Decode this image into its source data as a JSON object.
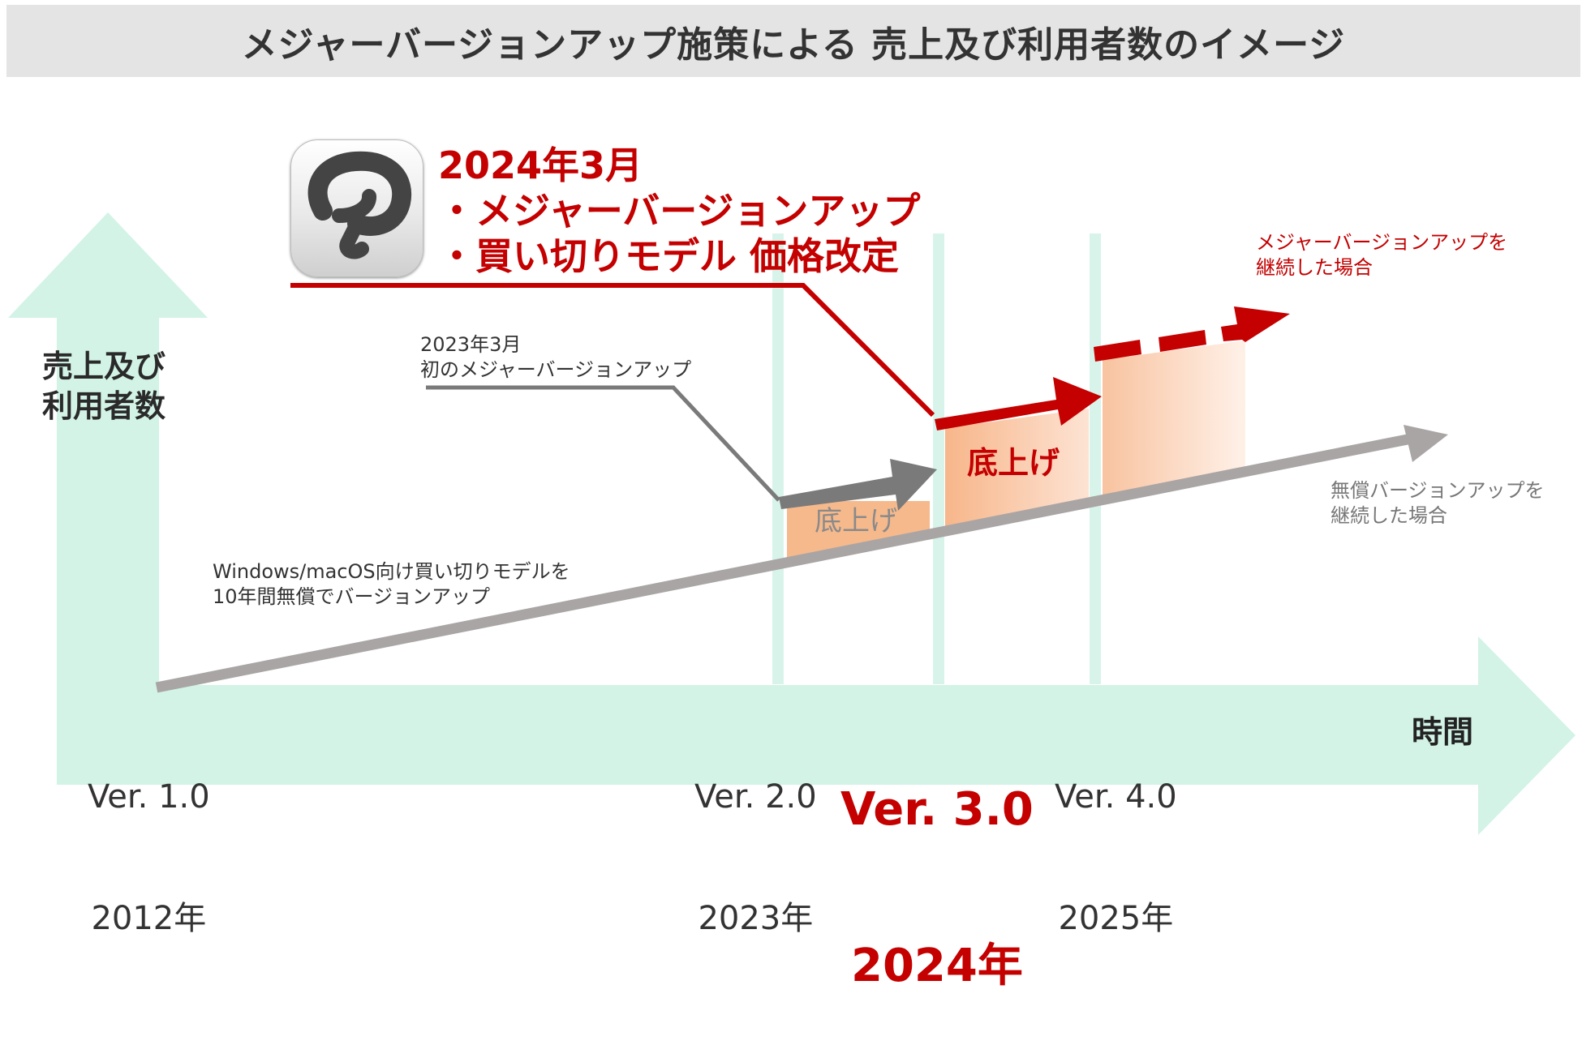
{
  "title": "メジャーバージョンアップ施策による 売上及び利用者数のイメージ",
  "y_axis_label": "売上及び\n利用者数",
  "x_axis_label": "時間",
  "headline": "2024年3月\n・メジャーバージョンアップ\n・買い切りモデル 価格改定",
  "note_2023": "2023年3月\n初のメジャーバージョンアップ",
  "note_windows": "Windows/macOS向け買い切りモデルを\n10年間無償でバージョンアップ",
  "note_major_continue": "メジャーバージョンアップを\n継続した場合",
  "note_free_continue": "無償バージョンアップを\n継続した場合",
  "step_label_2023": "底上げ",
  "step_label_2024": "底上げ",
  "versions": [
    {
      "ver": "Ver. 1.0",
      "year": "2012年",
      "highlight": false
    },
    {
      "ver": "Ver. 2.0",
      "year": "2023年",
      "highlight": false
    },
    {
      "ver": "Ver. 3.0",
      "year": "2024年",
      "highlight": true
    },
    {
      "ver": "Ver. 4.0",
      "year": "2025年",
      "highlight": false
    }
  ],
  "colors": {
    "axis_mint": "#d2f3e6",
    "guide_mint": "#d8f4ea",
    "accent_red": "#c40000",
    "baseline_gray": "#aaa5a5",
    "step_orange": "#f6b98c"
  },
  "icons": {
    "app_icon": "clip-studio-paint-logo"
  }
}
